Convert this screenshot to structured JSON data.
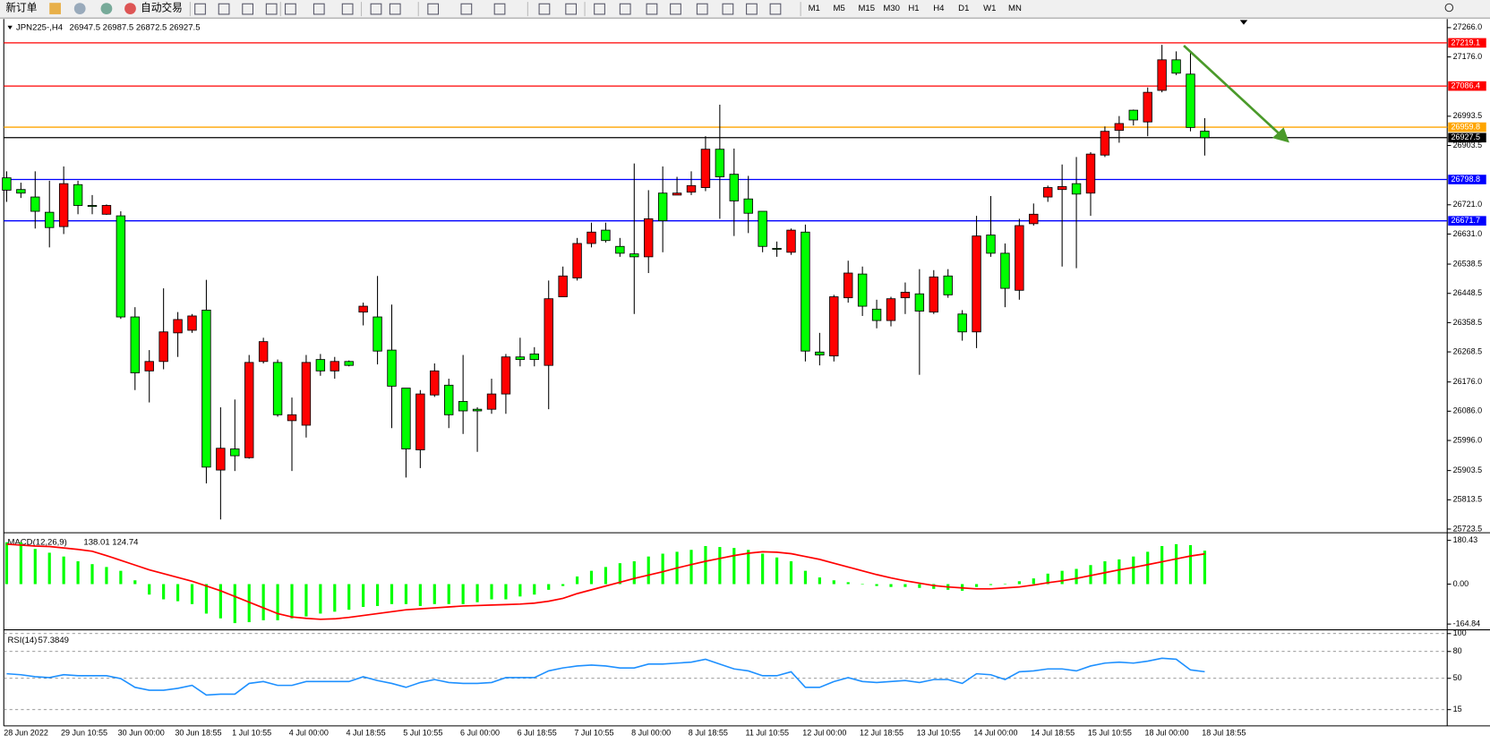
{
  "toolbar": {
    "new_order": "新订单",
    "auto_trading": "自动交易",
    "timeframes": [
      "M1",
      "M5",
      "M15",
      "M30",
      "H1",
      "H4",
      "D1",
      "W1",
      "MN"
    ]
  },
  "chart_data": [
    {
      "type": "candlestick",
      "symbol": "JPN225-,H4",
      "up_color": "#ff0000",
      "down_color": "#00ff00",
      "categories": [
        "28 Jun 2022",
        null,
        null,
        null,
        "29 Jun 10:55",
        null,
        null,
        null,
        "30 Jun 00:00",
        null,
        null,
        null,
        "30 Jun 18:55",
        null,
        null,
        null,
        "1 Jul 10:55",
        null,
        null,
        null,
        "4 Jul 00:00",
        null,
        null,
        null,
        "4 Jul 18:55",
        null,
        null,
        null,
        "5 Jul 10:55",
        null,
        null,
        null,
        "6 Jul 00:00",
        null,
        null,
        null,
        "6 Jul 18:55",
        null,
        null,
        null,
        "7 Jul 10:55",
        null,
        null,
        null,
        "8 Jul 00:00",
        null,
        null,
        null,
        "8 Jul 18:55",
        null,
        null,
        null,
        "11 Jul 10:55",
        null,
        null,
        null,
        "12 Jul 00:00",
        null,
        null,
        null,
        "12 Jul 18:55",
        null,
        null,
        null,
        "13 Jul 10:55",
        null,
        null,
        null,
        "14 Jul 00:00",
        null,
        null,
        null,
        "14 Jul 18:55",
        null,
        null,
        null,
        "15 Jul 10:55",
        null,
        null,
        null,
        "18 Jul 00:00",
        null,
        null,
        null,
        "18 Jul 18:55"
      ],
      "open": [
        26804,
        26768,
        26745,
        26698,
        26654,
        26783,
        26719,
        26692,
        26687,
        26376,
        26210,
        26239,
        26327,
        26335,
        26397,
        25905,
        25970,
        25943,
        26239,
        26236,
        26057,
        26043,
        26245,
        26210,
        26239,
        26391,
        26376,
        26274,
        26157,
        25967,
        26136,
        26166,
        26116,
        26092,
        26092,
        26139,
        26253,
        26262,
        26227,
        26438,
        26496,
        26602,
        26643,
        26593,
        26570,
        26561,
        26757,
        26751,
        26760,
        26774,
        26892,
        26815,
        26739,
        26701,
        26587,
        26575,
        26637,
        26268,
        26256,
        26435,
        26508,
        26400,
        26365,
        26435,
        26447,
        26391,
        26502,
        26385,
        26330,
        26628,
        26572,
        26458,
        26663,
        26745,
        26768,
        26786,
        26757,
        26874,
        26950,
        27012,
        26976,
        27073,
        27167,
        27123,
        26947.5
      ],
      "high": [
        26824,
        26789,
        26824,
        26795,
        26839,
        26795,
        26751,
        26722,
        26701,
        26406,
        26274,
        26464,
        26391,
        26385,
        26490,
        26098,
        26122,
        26259,
        26312,
        26245,
        26128,
        26259,
        26262,
        26253,
        26242,
        26420,
        26502,
        26414,
        26157,
        26151,
        26233,
        26186,
        26259,
        26098,
        26186,
        26262,
        26312,
        26283,
        26488,
        26531,
        26619,
        26666,
        26666,
        26619,
        26848,
        26766,
        26839,
        26807,
        26824,
        26932,
        27029,
        26894,
        26810,
        26701,
        26608,
        26648,
        26660,
        26327,
        26444,
        26549,
        26531,
        26429,
        26438,
        26482,
        26523,
        26520,
        26523,
        26397,
        26687,
        26748,
        26602,
        26678,
        26725,
        26780,
        26845,
        26868,
        26883,
        26962,
        26994,
        27014,
        27082,
        27213,
        27193,
        27190,
        26987.5
      ],
      "low": [
        26730,
        26742,
        26648,
        26590,
        26631,
        26692,
        26692,
        26690,
        26370,
        26151,
        26113,
        26215,
        26253,
        26327,
        25864,
        25753,
        25902,
        25940,
        26233,
        26069,
        25902,
        26005,
        26195,
        26186,
        26224,
        26350,
        26230,
        26034,
        25882,
        25911,
        26130,
        26034,
        26016,
        25961,
        26078,
        26078,
        26224,
        26224,
        26092,
        26438,
        26488,
        26590,
        26605,
        26561,
        26385,
        26511,
        26575,
        26751,
        26751,
        26763,
        26678,
        26625,
        26634,
        26575,
        26561,
        26567,
        26239,
        26227,
        26239,
        26420,
        26379,
        26341,
        26347,
        26385,
        26198,
        26385,
        26435,
        26303,
        26280,
        26561,
        26406,
        26429,
        26657,
        26730,
        26531,
        26526,
        26687,
        26868,
        26912,
        26965,
        26932,
        27067,
        27120,
        26947,
        26872.5
      ],
      "close": [
        26766,
        26757,
        26701,
        26651,
        26786,
        26719,
        26716,
        26719,
        26376,
        26204,
        26239,
        26330,
        26368,
        26379,
        25914,
        25972,
        25949,
        26236,
        26300,
        26075,
        26075,
        26236,
        26210,
        26239,
        26227,
        26409,
        26271,
        26163,
        25970,
        26139,
        26210,
        26075,
        26087,
        26087,
        26139,
        26253,
        26245,
        26245,
        26432,
        26502,
        26602,
        26637,
        26611,
        26572,
        26561,
        26678,
        26672,
        26757,
        26780,
        26892,
        26807,
        26733,
        26695,
        26593,
        26584,
        26643,
        26271,
        26259,
        26438,
        26511,
        26409,
        26365,
        26432,
        26452,
        26394,
        26499,
        26444,
        26330,
        26625,
        26572,
        26464,
        26657,
        26692,
        26774,
        26777,
        26754,
        26877,
        26947,
        26971,
        26982,
        27067,
        27167,
        27126,
        26959,
        26927.5
      ],
      "ylim": [
        25715,
        27292.5
      ],
      "yticks": [
        {
          "value": 27266,
          "label": "27266.0"
        },
        {
          "value": 27176,
          "label": "27176.0"
        },
        26993.5,
        26903.5,
        {
          "value": 26721,
          "label": "26721.0"
        },
        {
          "value": 26631,
          "label": "26631.0"
        },
        26538.5,
        26448.5,
        26358.5,
        26268.5,
        {
          "value": 26176,
          "label": "26176.0"
        },
        {
          "value": 26086,
          "label": "26086.0"
        },
        {
          "value": 25996,
          "label": "25996.0"
        },
        25903.5,
        25813.5,
        25723.5
      ],
      "hlines": [
        {
          "value": 27219.1,
          "color": "#ff0000"
        },
        {
          "value": 27086.4,
          "color": "#ff0000"
        },
        {
          "value": 26959.8,
          "color": "#ffa500"
        },
        {
          "value": 26927.5,
          "color": "#000000"
        },
        {
          "value": 26798.8,
          "color": "#0000ff"
        },
        {
          "value": 26671.7,
          "color": "#0000ff"
        }
      ]
    },
    {
      "type": "macd",
      "title": "MACD(12,26,9)",
      "color": "#00ff00",
      "signal_color": "#ff0000",
      "values": [
        172.7,
        172.7,
        145.2,
        129.5,
        113.8,
        94.2,
        82.4,
        70.6,
        54.9,
        15.7,
        -43.2,
        -62.8,
        -70.6,
        -82.4,
        -121.6,
        -141.3,
        -160.9,
        -157.0,
        -149.1,
        -149.1,
        -141.3,
        -133.4,
        -121.6,
        -113.8,
        -105.9,
        -94.2,
        -90.3,
        -82.4,
        -82.4,
        -90.3,
        -82.4,
        -82.4,
        -82.4,
        -74.6,
        -62.8,
        -62.8,
        -51.0,
        -43.2,
        -23.5,
        -7.8,
        31.4,
        54.9,
        70.6,
        86.3,
        94.2,
        113.8,
        125.6,
        133.4,
        141.3,
        157.0,
        153.0,
        149.1,
        141.3,
        125.6,
        109.9,
        94.2,
        54.9,
        27.5,
        15.7,
        7.8,
        -2.0,
        -7.8,
        -11.8,
        -11.8,
        -15.7,
        -19.6,
        -23.5,
        -27.5,
        -11.8,
        -3.9,
        2.0,
        11.8,
        23.5,
        43.2,
        54.9,
        62.8,
        78.5,
        94.2,
        102.0,
        113.8,
        133.4,
        157.0,
        164.8,
        160.9,
        138.01
      ],
      "signal": [
        164.8,
        160.9,
        157.0,
        155.0,
        149.1,
        143.2,
        135.4,
        117.7,
        98.1,
        78.5,
        58.9,
        43.2,
        27.5,
        11.8,
        -7.8,
        -27.5,
        -51.0,
        -74.6,
        -98.1,
        -121.6,
        -135.4,
        -141.3,
        -145.2,
        -143.2,
        -137.3,
        -129.5,
        -121.6,
        -113.8,
        -105.9,
        -102.0,
        -98.1,
        -94.2,
        -90.3,
        -88.3,
        -86.3,
        -84.4,
        -82.4,
        -78.5,
        -70.6,
        -58.9,
        -39.2,
        -23.5,
        -7.8,
        7.8,
        23.5,
        37.3,
        51.0,
        66.7,
        80.4,
        94.2,
        105.9,
        117.7,
        127.5,
        133.4,
        131.5,
        125.6,
        113.8,
        102.0,
        86.3,
        70.6,
        54.9,
        39.2,
        25.5,
        13.7,
        3.9,
        -5.9,
        -11.8,
        -15.7,
        -19.6,
        -19.6,
        -15.7,
        -11.8,
        -3.9,
        5.9,
        13.7,
        23.5,
        35.3,
        47.1,
        58.9,
        68.7,
        80.4,
        92.2,
        104.0,
        115.8,
        124.74
      ],
      "ylim": [
        -184.5,
        204
      ],
      "yticks": [
        180.43,
        {
          "value": 0,
          "label": "0.00"
        },
        -164.84
      ]
    },
    {
      "type": "line",
      "title": "RSI(14)",
      "color": "#1e90ff",
      "values": [
        55.1,
        54.0,
        51.8,
        50.8,
        54.0,
        52.9,
        52.9,
        52.9,
        49.7,
        39.9,
        36.7,
        36.7,
        38.8,
        42.1,
        31.3,
        32.3,
        32.3,
        44.3,
        46.4,
        42.1,
        42.1,
        46.4,
        46.4,
        46.4,
        46.4,
        51.8,
        47.5,
        44.3,
        39.9,
        45.3,
        48.6,
        45.3,
        44.3,
        44.3,
        45.3,
        50.8,
        50.8,
        50.8,
        58.3,
        61.6,
        63.8,
        64.8,
        63.8,
        61.6,
        61.6,
        65.9,
        65.9,
        67.0,
        68.1,
        71.3,
        65.9,
        60.5,
        58.3,
        52.9,
        52.9,
        57.3,
        39.9,
        39.9,
        46.4,
        50.8,
        46.4,
        45.3,
        46.4,
        47.5,
        45.3,
        48.6,
        48.6,
        44.3,
        55.1,
        54.0,
        48.6,
        57.3,
        58.3,
        60.5,
        60.5,
        58.3,
        63.8,
        67.0,
        68.1,
        67.0,
        69.2,
        72.4,
        71.3,
        59.4,
        57.3849
      ],
      "ylim": [
        0,
        100
      ],
      "yticks": [
        100,
        80,
        50,
        15
      ],
      "grid": true
    }
  ]
}
